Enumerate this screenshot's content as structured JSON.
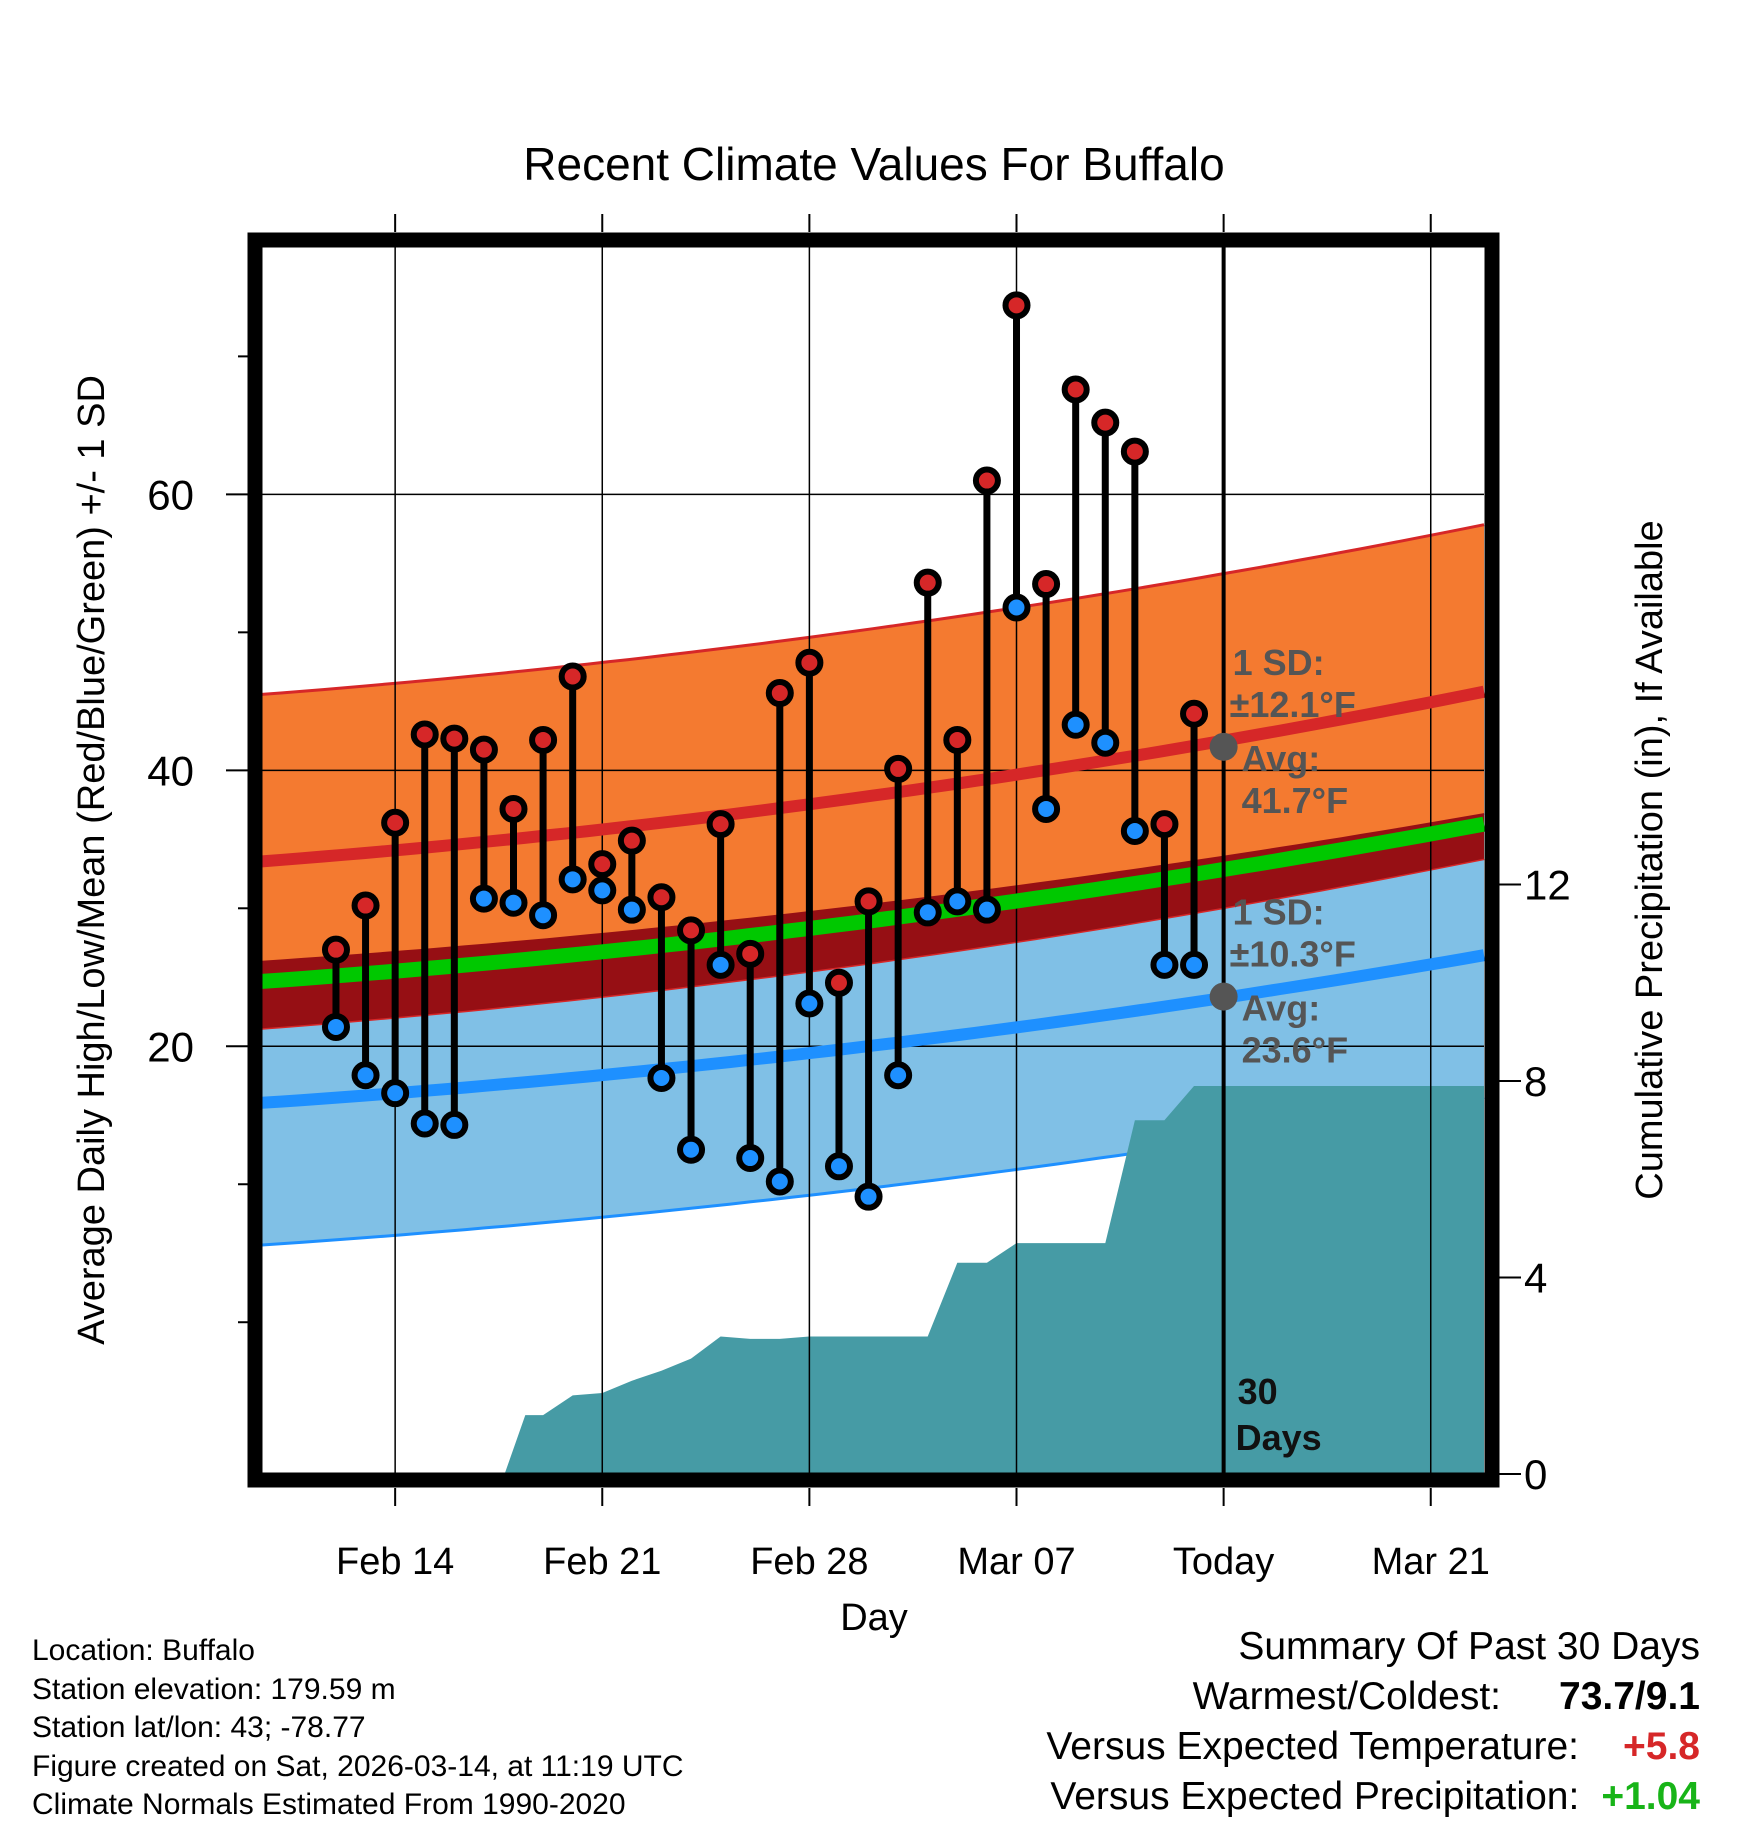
{
  "title": "Recent Climate Values For Buffalo",
  "colors": {
    "high": "#d62728",
    "low": "#1e90ff",
    "mean": "#00c800",
    "sd_high_band": "#f47a30",
    "sd_low_band": "#80c0e6",
    "overlap_band": "#960f14",
    "precip": "#469ba5",
    "sd_label": "#555555",
    "positive": "#d62728",
    "precip_positive": "#18b418"
  },
  "chart_data": {
    "type": "line",
    "title": "Recent Climate Values For Buffalo",
    "xlabel": "Day",
    "ylabel": "Average Daily High/Low/Mean (Red/Blue/Green) +/- 1 SD",
    "y2label": "Cumulative Precipitation (in), If Available",
    "ylim": [
      -11,
      78
    ],
    "y_ticks": [
      20,
      40,
      60
    ],
    "y_minor_ticks": [
      0,
      10,
      30,
      50,
      70
    ],
    "y2lim": [
      0,
      25
    ],
    "y2_ticks": [
      0,
      4,
      8,
      12
    ],
    "x_range": [
      -32.5,
      8.8
    ],
    "x_tick_days": [
      -28,
      -21,
      -14,
      -7,
      0,
      7
    ],
    "x_tick_labels": [
      "Feb 14",
      "Feb 21",
      "Feb 28",
      "Mar 07",
      "Today",
      "Mar 21"
    ],
    "today_x": 0,
    "series": [
      {
        "name": "Daily High",
        "x": [
          -30,
          -29,
          -28,
          -27,
          -26,
          -25,
          -24,
          -23,
          -22,
          -21,
          -20,
          -19,
          -18,
          -17,
          -16,
          -15,
          -14,
          -13,
          -12,
          -11,
          -10,
          -9,
          -8,
          -7,
          -6,
          -5,
          -4,
          -3,
          -2,
          -1
        ],
        "values": [
          27,
          30.2,
          36.2,
          42.6,
          42.3,
          41.5,
          37.2,
          42.2,
          46.8,
          33.2,
          34.9,
          30.8,
          28.4,
          36.1,
          26.7,
          45.6,
          47.8,
          24.6,
          30.5,
          40.1,
          53.6,
          42.2,
          61,
          73.7,
          53.5,
          67.6,
          65.2,
          63.1,
          36.1,
          44.1
        ]
      },
      {
        "name": "Daily Low",
        "x": [
          -30,
          -29,
          -28,
          -27,
          -26,
          -25,
          -24,
          -23,
          -22,
          -21,
          -20,
          -19,
          -18,
          -17,
          -16,
          -15,
          -14,
          -13,
          -12,
          -11,
          -10,
          -9,
          -8,
          -7,
          -6,
          -5,
          -4,
          -3,
          -2,
          -1
        ],
        "values": [
          21.4,
          17.9,
          16.6,
          14.4,
          14.3,
          30.7,
          30.4,
          29.5,
          32.1,
          31.3,
          29.9,
          17.7,
          12.5,
          25.9,
          11.9,
          10.2,
          23.1,
          11.3,
          9.1,
          17.9,
          29.7,
          30.5,
          29.9,
          51.8,
          37.2,
          43.3,
          42.0,
          35.6,
          25.9,
          25.9
        ]
      },
      {
        "name": "Normal High",
        "x": [
          -32.5,
          8.8
        ],
        "values": [
          33.4,
          45.7
        ]
      },
      {
        "name": "Normal Low",
        "x": [
          -32.5,
          8.8
        ],
        "values": [
          15.9,
          26.6
        ]
      },
      {
        "name": "Normal Mean",
        "x": [
          -32.5,
          8.8
        ],
        "values": [
          24.7,
          36.1
        ]
      },
      {
        "name": "Precipitation",
        "x": [
          -24.3,
          -23.6,
          -23,
          -22,
          -21,
          -20,
          -19,
          -18,
          -17,
          -16,
          -15,
          -14,
          -13,
          -12,
          -11,
          -10,
          -9,
          -8,
          -7,
          -6,
          -5,
          -4,
          -3,
          -2,
          -1,
          0,
          8.8
        ],
        "values": [
          0,
          1.2,
          1.2,
          1.6,
          1.65,
          1.9,
          2.1,
          2.35,
          2.8,
          2.75,
          2.75,
          2.8,
          2.8,
          2.8,
          2.8,
          2.8,
          4.3,
          4.3,
          4.7,
          4.7,
          4.7,
          4.7,
          7.2,
          7.2,
          7.9,
          7.9,
          7.9
        ]
      }
    ],
    "sd_high": 12.1,
    "sd_low": 10.3,
    "annotations": {
      "high_sd_label": "1 SD:",
      "high_sd_value": "±12.1°F",
      "high_avg_label": "Avg:",
      "high_avg_value": "41.7°F",
      "low_sd_label": "1 SD:",
      "low_sd_value": "±10.3°F",
      "low_avg_label": "Avg:",
      "low_avg_value": "23.6°F",
      "today_avg_high": 41.7,
      "today_avg_low": 23.6,
      "days_count": "30",
      "days_label": "Days"
    }
  },
  "footer": {
    "location": "Location: Buffalo",
    "elevation": "Station elevation: 179.59 m",
    "latlon": "Station lat/lon: 43; -78.77",
    "created": "Figure created on Sat, 2026-03-14, at 11:19 UTC",
    "normals": "Climate Normals Estimated From 1990-2020"
  },
  "summary": {
    "title": "Summary Of Past 30 Days",
    "warmest_label": "Warmest/Coldest:",
    "warmest_value": "73.7/9.1",
    "temp_label": "Versus Expected Temperature:",
    "temp_value": "+5.8",
    "precip_label": "Versus Expected Precipitation:",
    "precip_value": "+1.04"
  }
}
